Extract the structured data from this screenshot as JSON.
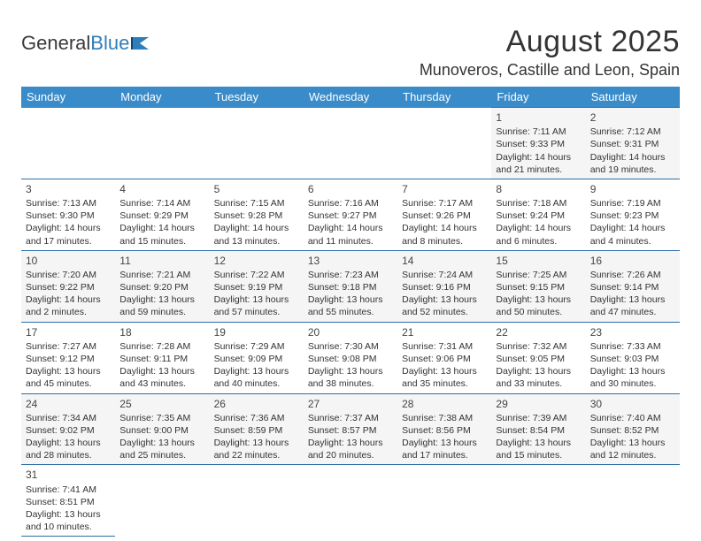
{
  "logo": {
    "text1": "General",
    "text2": "Blue"
  },
  "title": "August 2025",
  "location": "Munoveros, Castille and Leon, Spain",
  "weekdays": [
    "Sunday",
    "Monday",
    "Tuesday",
    "Wednesday",
    "Thursday",
    "Friday",
    "Saturday"
  ],
  "colors": {
    "header_bg": "#3a8bc9",
    "header_text": "#ffffff",
    "border": "#2d6fa8",
    "row_alt": "#f5f5f5"
  },
  "weeks": [
    [
      null,
      null,
      null,
      null,
      null,
      {
        "d": "1",
        "sr": "7:11 AM",
        "ss": "9:33 PM",
        "dl": "14 hours and 21 minutes."
      },
      {
        "d": "2",
        "sr": "7:12 AM",
        "ss": "9:31 PM",
        "dl": "14 hours and 19 minutes."
      }
    ],
    [
      {
        "d": "3",
        "sr": "7:13 AM",
        "ss": "9:30 PM",
        "dl": "14 hours and 17 minutes."
      },
      {
        "d": "4",
        "sr": "7:14 AM",
        "ss": "9:29 PM",
        "dl": "14 hours and 15 minutes."
      },
      {
        "d": "5",
        "sr": "7:15 AM",
        "ss": "9:28 PM",
        "dl": "14 hours and 13 minutes."
      },
      {
        "d": "6",
        "sr": "7:16 AM",
        "ss": "9:27 PM",
        "dl": "14 hours and 11 minutes."
      },
      {
        "d": "7",
        "sr": "7:17 AM",
        "ss": "9:26 PM",
        "dl": "14 hours and 8 minutes."
      },
      {
        "d": "8",
        "sr": "7:18 AM",
        "ss": "9:24 PM",
        "dl": "14 hours and 6 minutes."
      },
      {
        "d": "9",
        "sr": "7:19 AM",
        "ss": "9:23 PM",
        "dl": "14 hours and 4 minutes."
      }
    ],
    [
      {
        "d": "10",
        "sr": "7:20 AM",
        "ss": "9:22 PM",
        "dl": "14 hours and 2 minutes."
      },
      {
        "d": "11",
        "sr": "7:21 AM",
        "ss": "9:20 PM",
        "dl": "13 hours and 59 minutes."
      },
      {
        "d": "12",
        "sr": "7:22 AM",
        "ss": "9:19 PM",
        "dl": "13 hours and 57 minutes."
      },
      {
        "d": "13",
        "sr": "7:23 AM",
        "ss": "9:18 PM",
        "dl": "13 hours and 55 minutes."
      },
      {
        "d": "14",
        "sr": "7:24 AM",
        "ss": "9:16 PM",
        "dl": "13 hours and 52 minutes."
      },
      {
        "d": "15",
        "sr": "7:25 AM",
        "ss": "9:15 PM",
        "dl": "13 hours and 50 minutes."
      },
      {
        "d": "16",
        "sr": "7:26 AM",
        "ss": "9:14 PM",
        "dl": "13 hours and 47 minutes."
      }
    ],
    [
      {
        "d": "17",
        "sr": "7:27 AM",
        "ss": "9:12 PM",
        "dl": "13 hours and 45 minutes."
      },
      {
        "d": "18",
        "sr": "7:28 AM",
        "ss": "9:11 PM",
        "dl": "13 hours and 43 minutes."
      },
      {
        "d": "19",
        "sr": "7:29 AM",
        "ss": "9:09 PM",
        "dl": "13 hours and 40 minutes."
      },
      {
        "d": "20",
        "sr": "7:30 AM",
        "ss": "9:08 PM",
        "dl": "13 hours and 38 minutes."
      },
      {
        "d": "21",
        "sr": "7:31 AM",
        "ss": "9:06 PM",
        "dl": "13 hours and 35 minutes."
      },
      {
        "d": "22",
        "sr": "7:32 AM",
        "ss": "9:05 PM",
        "dl": "13 hours and 33 minutes."
      },
      {
        "d": "23",
        "sr": "7:33 AM",
        "ss": "9:03 PM",
        "dl": "13 hours and 30 minutes."
      }
    ],
    [
      {
        "d": "24",
        "sr": "7:34 AM",
        "ss": "9:02 PM",
        "dl": "13 hours and 28 minutes."
      },
      {
        "d": "25",
        "sr": "7:35 AM",
        "ss": "9:00 PM",
        "dl": "13 hours and 25 minutes."
      },
      {
        "d": "26",
        "sr": "7:36 AM",
        "ss": "8:59 PM",
        "dl": "13 hours and 22 minutes."
      },
      {
        "d": "27",
        "sr": "7:37 AM",
        "ss": "8:57 PM",
        "dl": "13 hours and 20 minutes."
      },
      {
        "d": "28",
        "sr": "7:38 AM",
        "ss": "8:56 PM",
        "dl": "13 hours and 17 minutes."
      },
      {
        "d": "29",
        "sr": "7:39 AM",
        "ss": "8:54 PM",
        "dl": "13 hours and 15 minutes."
      },
      {
        "d": "30",
        "sr": "7:40 AM",
        "ss": "8:52 PM",
        "dl": "13 hours and 12 minutes."
      }
    ],
    [
      {
        "d": "31",
        "sr": "7:41 AM",
        "ss": "8:51 PM",
        "dl": "13 hours and 10 minutes."
      },
      null,
      null,
      null,
      null,
      null,
      null
    ]
  ],
  "labels": {
    "sunrise": "Sunrise:",
    "sunset": "Sunset:",
    "daylight": "Daylight:"
  }
}
